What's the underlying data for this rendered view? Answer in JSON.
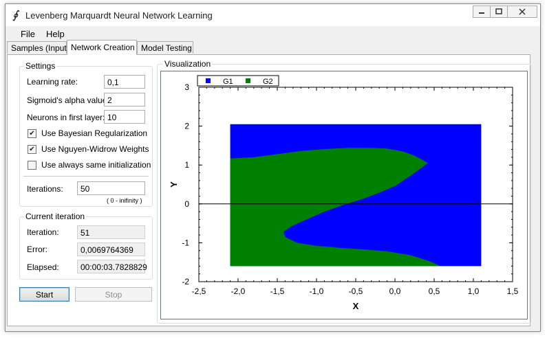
{
  "window": {
    "title": "Levenberg Marquardt Neural Network Learning",
    "icon": "function-icon",
    "controls": [
      "minimize-icon",
      "maximize-icon",
      "close-icon"
    ]
  },
  "menu": {
    "items": [
      {
        "label": "File"
      },
      {
        "label": "Help"
      }
    ]
  },
  "tabs": [
    {
      "label": "Samples (Input)",
      "active": false
    },
    {
      "label": "Network Creation",
      "active": true
    },
    {
      "label": "Model Testing",
      "active": false
    }
  ],
  "settings": {
    "title": "Settings",
    "learning_rate": {
      "label": "Learning rate:",
      "value": "0,1"
    },
    "alpha": {
      "label": "Sigmoid's alpha value:",
      "value": "2"
    },
    "neurons": {
      "label": "Neurons in first layer:",
      "value": "10"
    },
    "bayesian": {
      "label": "Use Bayesian Regularization",
      "checked": true
    },
    "nguyen": {
      "label": "Use Nguyen-Widrow Weights",
      "checked": true
    },
    "same_init": {
      "label": "Use always same initialization",
      "checked": false
    },
    "iterations": {
      "label": "Iterations:",
      "value": "50",
      "hint": "( 0 - inifinity )"
    }
  },
  "current": {
    "title": "Current iteration",
    "iteration": {
      "label": "Iteration:",
      "value": "51"
    },
    "error": {
      "label": "Error:",
      "value": "0,0069764369"
    },
    "elapsed": {
      "label": "Elapsed:",
      "value": "00:00:03.7828829"
    }
  },
  "buttons": {
    "start": "Start",
    "stop": "Stop"
  },
  "visualization": {
    "title": "Visualization"
  },
  "chart_data": {
    "type": "heatmap",
    "xlabel": "X",
    "ylabel": "Y",
    "xlim": [
      -2.5,
      1.5
    ],
    "ylim": [
      -2,
      3
    ],
    "x_ticks": [
      "-2,5",
      "-2,0",
      "-1,5",
      "-1,0",
      "-0,5",
      "0,0",
      "0,5",
      "1,0",
      "1,5"
    ],
    "y_ticks": [
      "3",
      "2",
      "1",
      "0",
      "-1",
      "-2"
    ],
    "x_tick_values": [
      -2.5,
      -2.0,
      -1.5,
      -1.0,
      -0.5,
      0.0,
      0.5,
      1.0,
      1.5
    ],
    "y_tick_values": [
      3,
      2,
      1,
      0,
      -1,
      -2
    ],
    "legend": {
      "placement": "top-left",
      "entries": [
        {
          "name": "G1",
          "color": "#0000ff"
        },
        {
          "name": "G2",
          "color": "#008000"
        }
      ]
    },
    "region": {
      "x": [
        -2.1,
        1.1
      ],
      "y": [
        -1.6,
        2.05
      ]
    },
    "background_class": "G1",
    "g2_boundary": {
      "top_edge": [
        [
          -2.1,
          1.17
        ],
        [
          -1.8,
          1.2
        ],
        [
          -1.5,
          1.28
        ],
        [
          -1.2,
          1.36
        ],
        [
          -0.9,
          1.41
        ],
        [
          -0.6,
          1.44
        ],
        [
          -0.3,
          1.44
        ],
        [
          -0.1,
          1.42
        ],
        [
          0.1,
          1.35
        ],
        [
          0.25,
          1.24
        ],
        [
          0.35,
          1.13
        ],
        [
          0.42,
          1.05
        ]
      ],
      "inner_edge": [
        [
          0.42,
          1.05
        ],
        [
          0.32,
          0.9
        ],
        [
          0.18,
          0.7
        ],
        [
          0.02,
          0.48
        ],
        [
          -0.18,
          0.3
        ],
        [
          -0.42,
          0.12
        ],
        [
          -0.68,
          -0.04
        ],
        [
          -0.92,
          -0.22
        ],
        [
          -1.15,
          -0.42
        ],
        [
          -1.32,
          -0.58
        ],
        [
          -1.42,
          -0.72
        ],
        [
          -1.4,
          -0.85
        ],
        [
          -1.25,
          -1.0
        ],
        [
          -1.0,
          -1.08
        ],
        [
          -0.7,
          -1.13
        ],
        [
          -0.4,
          -1.17
        ],
        [
          -0.1,
          -1.22
        ],
        [
          0.2,
          -1.32
        ],
        [
          0.45,
          -1.48
        ],
        [
          0.58,
          -1.6
        ]
      ]
    },
    "reference_line": {
      "y": 0
    }
  }
}
